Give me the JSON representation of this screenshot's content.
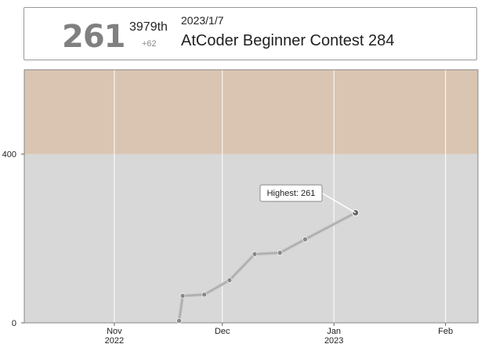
{
  "status": {
    "rating": "261",
    "rank": "3979th",
    "delta": "+62",
    "date": "2023/1/7",
    "contest": "AtCoder Beginner Contest 284"
  },
  "colors": {
    "gray_band": "#d8d8d8",
    "brown_band": "#d9c5b2",
    "line": "#aaaaaa",
    "point": "#888888"
  },
  "chart_data": {
    "type": "line",
    "title": "",
    "xlabel": "",
    "ylabel": "",
    "ylim": [
      0,
      600
    ],
    "xlim": [
      "2022-10-07",
      "2023-02-10"
    ],
    "y_ticks": [
      {
        "value": 0,
        "label": "0"
      },
      {
        "value": 400,
        "label": "400"
      }
    ],
    "x_ticks": [
      {
        "date": "2022-11-01",
        "label": "Nov",
        "sublabel": "2022"
      },
      {
        "date": "2022-12-01",
        "label": "Dec",
        "sublabel": ""
      },
      {
        "date": "2023-01-01",
        "label": "Jan",
        "sublabel": "2023"
      },
      {
        "date": "2023-02-01",
        "label": "Feb",
        "sublabel": ""
      }
    ],
    "bands": [
      {
        "from": 0,
        "to": 400,
        "color": "#d8d8d8"
      },
      {
        "from": 400,
        "to": 600,
        "color": "#d9c5b2"
      }
    ],
    "series": [
      {
        "points": [
          {
            "x": "2022-11-19",
            "y": 5
          },
          {
            "x": "2022-11-20",
            "y": 64
          },
          {
            "x": "2022-11-26",
            "y": 67
          },
          {
            "x": "2022-12-03",
            "y": 101
          },
          {
            "x": "2022-12-10",
            "y": 163
          },
          {
            "x": "2022-12-17",
            "y": 166
          },
          {
            "x": "2022-12-24",
            "y": 198
          },
          {
            "x": "2023-01-07",
            "y": 261
          }
        ]
      }
    ],
    "annotation": {
      "text": "Highest: 261",
      "x": "2023-01-07",
      "y": 261
    }
  }
}
